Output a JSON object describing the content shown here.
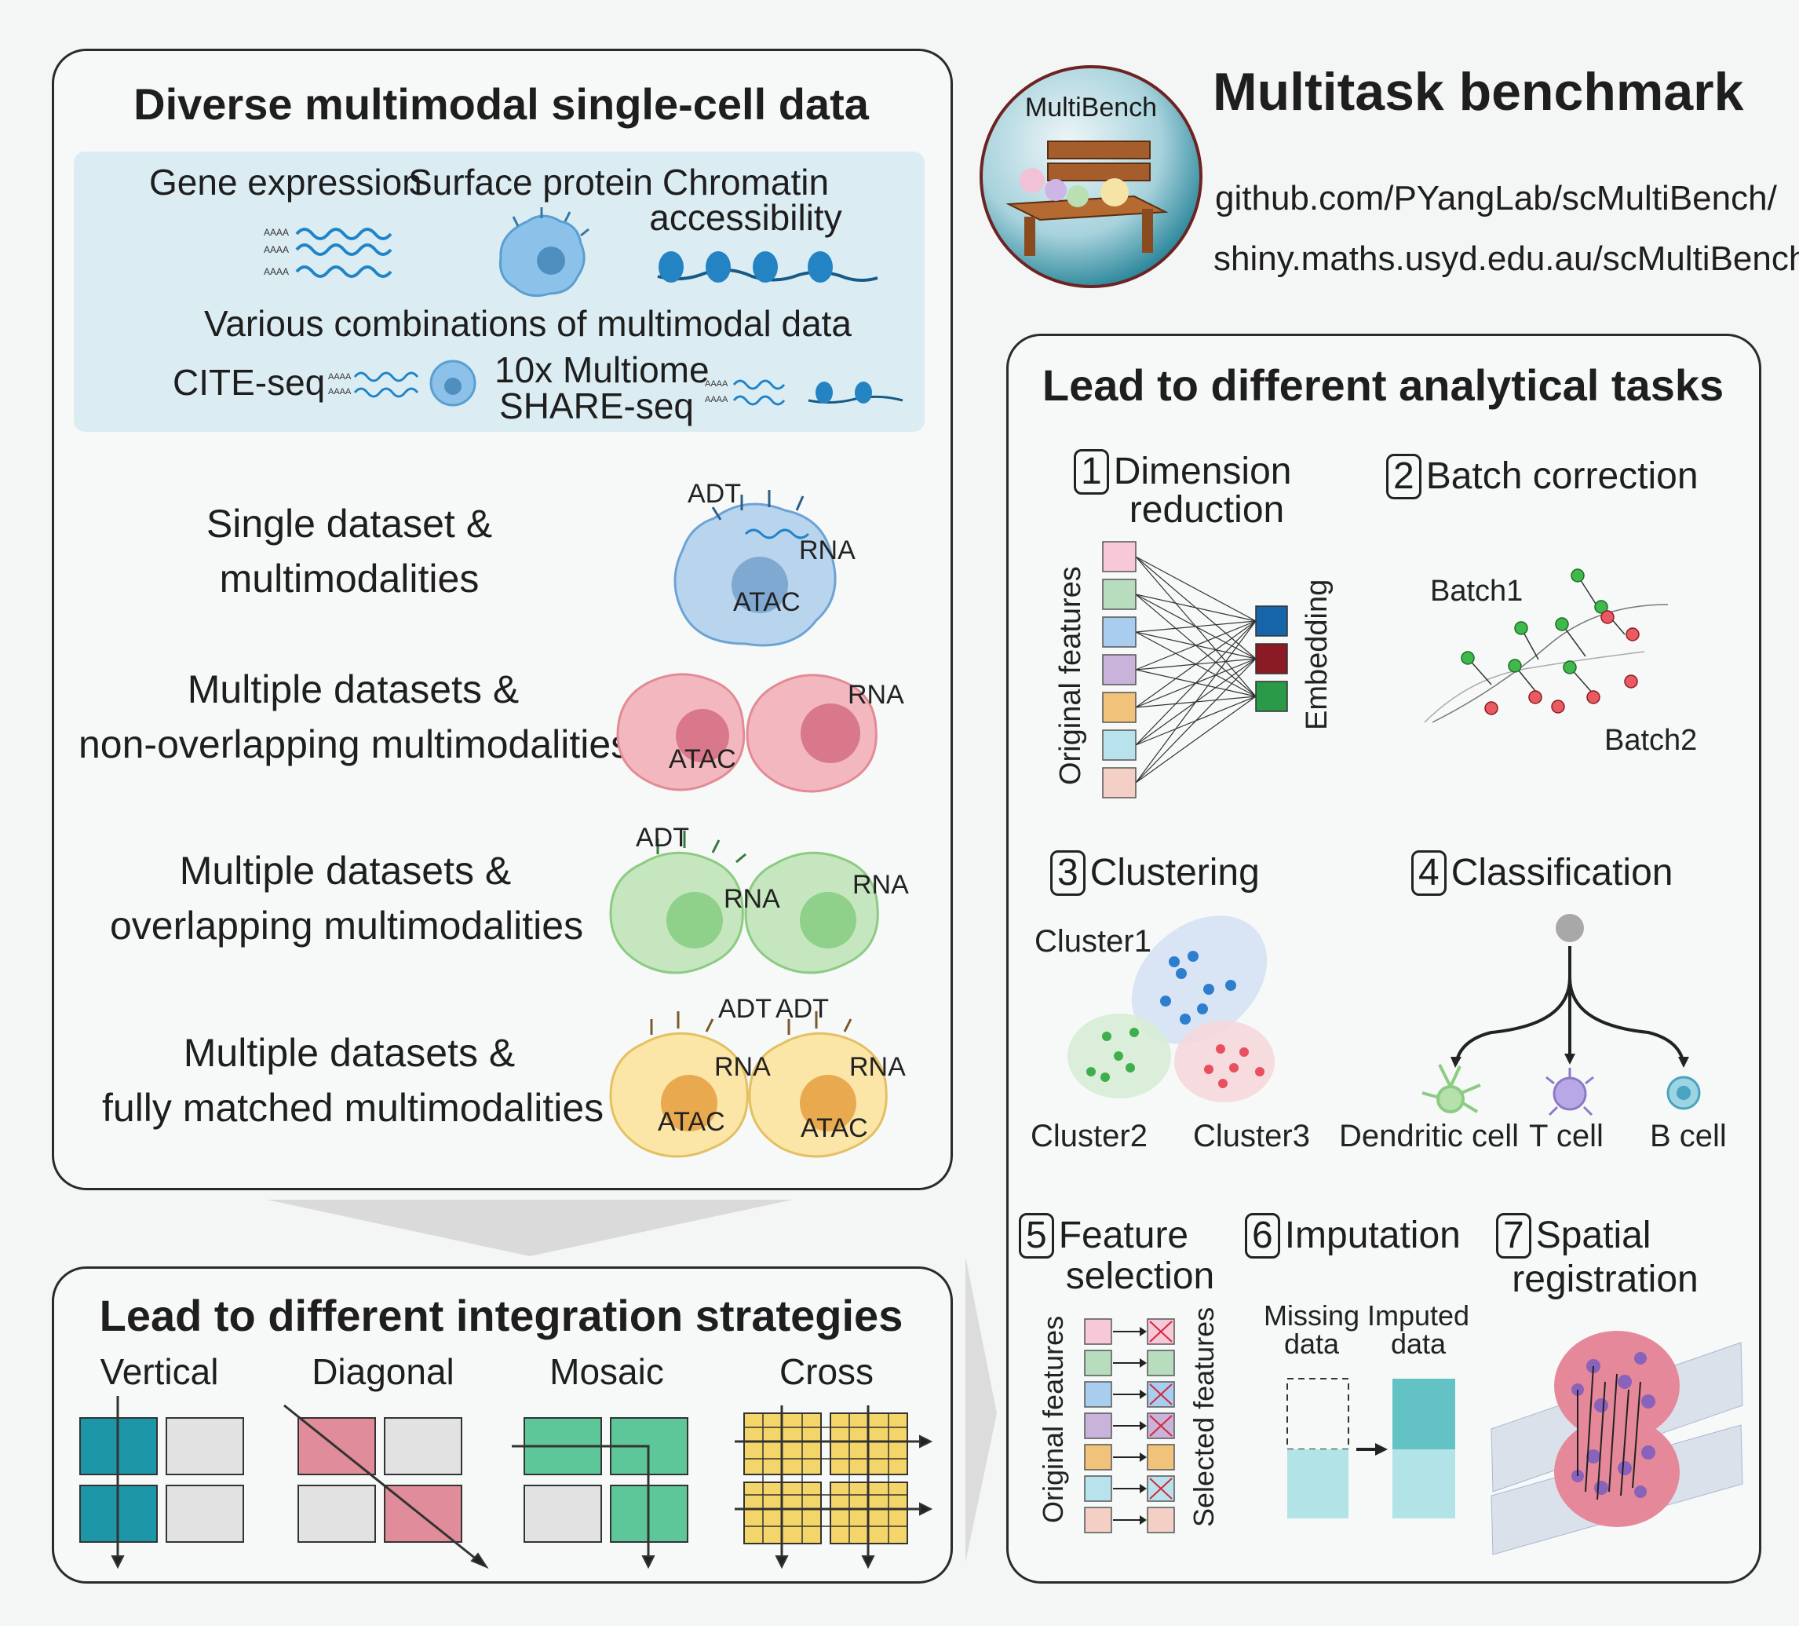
{
  "top_panel": {
    "title": "Diverse multimodal single-cell data",
    "gene_expression": "Gene expression",
    "surface_protein": "Surface protein",
    "chromatin_line1": "Chromatin",
    "chromatin_line2": "accessibility",
    "combinations": "Various combinations of multimodal data",
    "cite_seq": "CITE-seq",
    "multiome": "10x Multiome",
    "share_seq": "SHARE-seq",
    "aaaa": "AAAA"
  },
  "scenarios": [
    {
      "line1": "Single dataset &",
      "line2": "multimodalities"
    },
    {
      "line1": "Multiple datasets &",
      "line2": "non-overlapping multimodalities"
    },
    {
      "line1": "Multiple datasets &",
      "line2": "overlapping multimodalities"
    },
    {
      "line1": "Multiple datasets &",
      "line2": "fully matched multimodalities"
    }
  ],
  "cell_labels": {
    "adt": "ADT",
    "rna": "RNA",
    "atac": "ATAC"
  },
  "integration": {
    "title": "Lead to different integration strategies",
    "strategies": [
      "Vertical",
      "Diagonal",
      "Mosaic",
      "Cross"
    ]
  },
  "header": {
    "logo_text": "MultiBench",
    "title": "Multitask benchmark",
    "link1": "github.com/PYangLab/scMultiBench/",
    "link2": "shiny.maths.usyd.edu.au/scMultiBench/"
  },
  "tasks_panel": {
    "title": "Lead to different analytical tasks",
    "tasks": [
      {
        "num": "1",
        "name_line1": "Dimension",
        "name_line2": "reduction"
      },
      {
        "num": "2",
        "name_line1": "Batch correction",
        "name_line2": ""
      },
      {
        "num": "3",
        "name_line1": "Clustering",
        "name_line2": ""
      },
      {
        "num": "4",
        "name_line1": "Classification",
        "name_line2": ""
      },
      {
        "num": "5",
        "name_line1": "Feature",
        "name_line2": "selection"
      },
      {
        "num": "6",
        "name_line1": "Imputation",
        "name_line2": ""
      },
      {
        "num": "7",
        "name_line1": "Spatial",
        "name_line2": "registration"
      }
    ],
    "original_features": "Original features",
    "embedding": "Embedding",
    "batch1": "Batch1",
    "batch2": "Batch2",
    "cluster1": "Cluster1",
    "cluster2": "Cluster2",
    "cluster3": "Cluster3",
    "cell_types": [
      "Dendritic cell",
      "T cell",
      "B cell"
    ],
    "selected_features": "Selected features",
    "missing_line1": "Missing",
    "missing_line2": "data",
    "imputed_line1": "Imputed",
    "imputed_line2": "data"
  },
  "colors": {
    "feature_boxes": [
      "#f7c8d8",
      "#b8dcbe",
      "#a9cdee",
      "#c9b3da",
      "#f1c27a",
      "#b9e3ec",
      "#f4cfc6"
    ],
    "embedding": [
      "#1565a8",
      "#8a1a23",
      "#2a9a48"
    ],
    "vertical": "#1d97a8",
    "diagonal": "#e08c9a",
    "mosaic": "#5ec79a",
    "cross": "#f4d56a",
    "grey": "#e2e2e2"
  }
}
